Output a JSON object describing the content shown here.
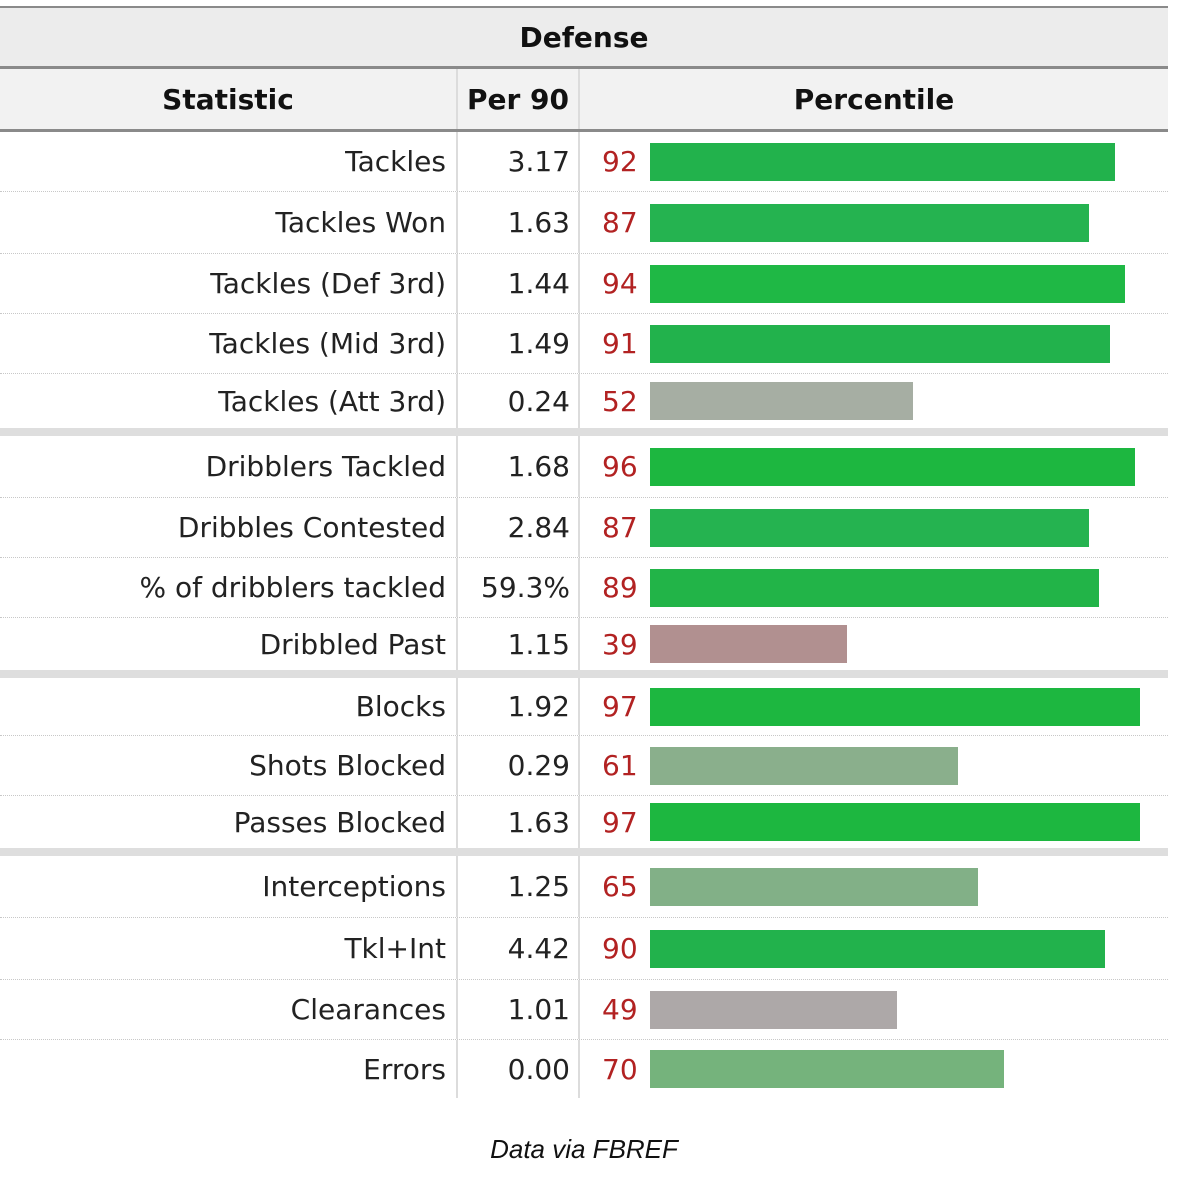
{
  "title": "Defense",
  "columns": {
    "statistic": "Statistic",
    "per90": "Per 90",
    "percentile": "Percentile"
  },
  "chart_data": {
    "type": "bar",
    "title": "Defense",
    "xlim": [
      0,
      100
    ],
    "rows": [
      {
        "label": "Tackles",
        "per90": "3.17",
        "percentile": 92,
        "color": "#22b24c"
      },
      {
        "label": "Tackles Won",
        "per90": "1.63",
        "percentile": 87,
        "color": "#25b350"
      },
      {
        "label": "Tackles (Def 3rd)",
        "per90": "1.44",
        "percentile": 94,
        "color": "#1fb845"
      },
      {
        "label": "Tackles (Mid 3rd)",
        "per90": "1.49",
        "percentile": 91,
        "color": "#22b24c"
      },
      {
        "label": "Tackles (Att 3rd)",
        "per90": "0.24",
        "percentile": 52,
        "color": "#a6aea3"
      },
      {
        "label": "Dribblers Tackled",
        "per90": "1.68",
        "percentile": 96,
        "color": "#1db740"
      },
      {
        "label": "Dribbles Contested",
        "per90": "2.84",
        "percentile": 87,
        "color": "#25b350"
      },
      {
        "label": "% of dribblers tackled",
        "per90": "59.3%",
        "percentile": 89,
        "color": "#22b448"
      },
      {
        "label": "Dribbled Past",
        "per90": "1.15",
        "percentile": 39,
        "color": "#b19090"
      },
      {
        "label": "Blocks",
        "per90": "1.92",
        "percentile": 97,
        "color": "#1db740"
      },
      {
        "label": "Shots Blocked",
        "per90": "0.29",
        "percentile": 61,
        "color": "#8aaf8c"
      },
      {
        "label": "Passes Blocked",
        "per90": "1.63",
        "percentile": 97,
        "color": "#1db740"
      },
      {
        "label": "Interceptions",
        "per90": "1.25",
        "percentile": 65,
        "color": "#82b087"
      },
      {
        "label": "Tkl+Int",
        "per90": "4.42",
        "percentile": 90,
        "color": "#22b24c"
      },
      {
        "label": "Clearances",
        "per90": "1.01",
        "percentile": 49,
        "color": "#ada8a8"
      },
      {
        "label": "Errors",
        "per90": "0.00",
        "percentile": 70,
        "color": "#75b37c"
      }
    ]
  },
  "footnote": "Data via FBREF"
}
